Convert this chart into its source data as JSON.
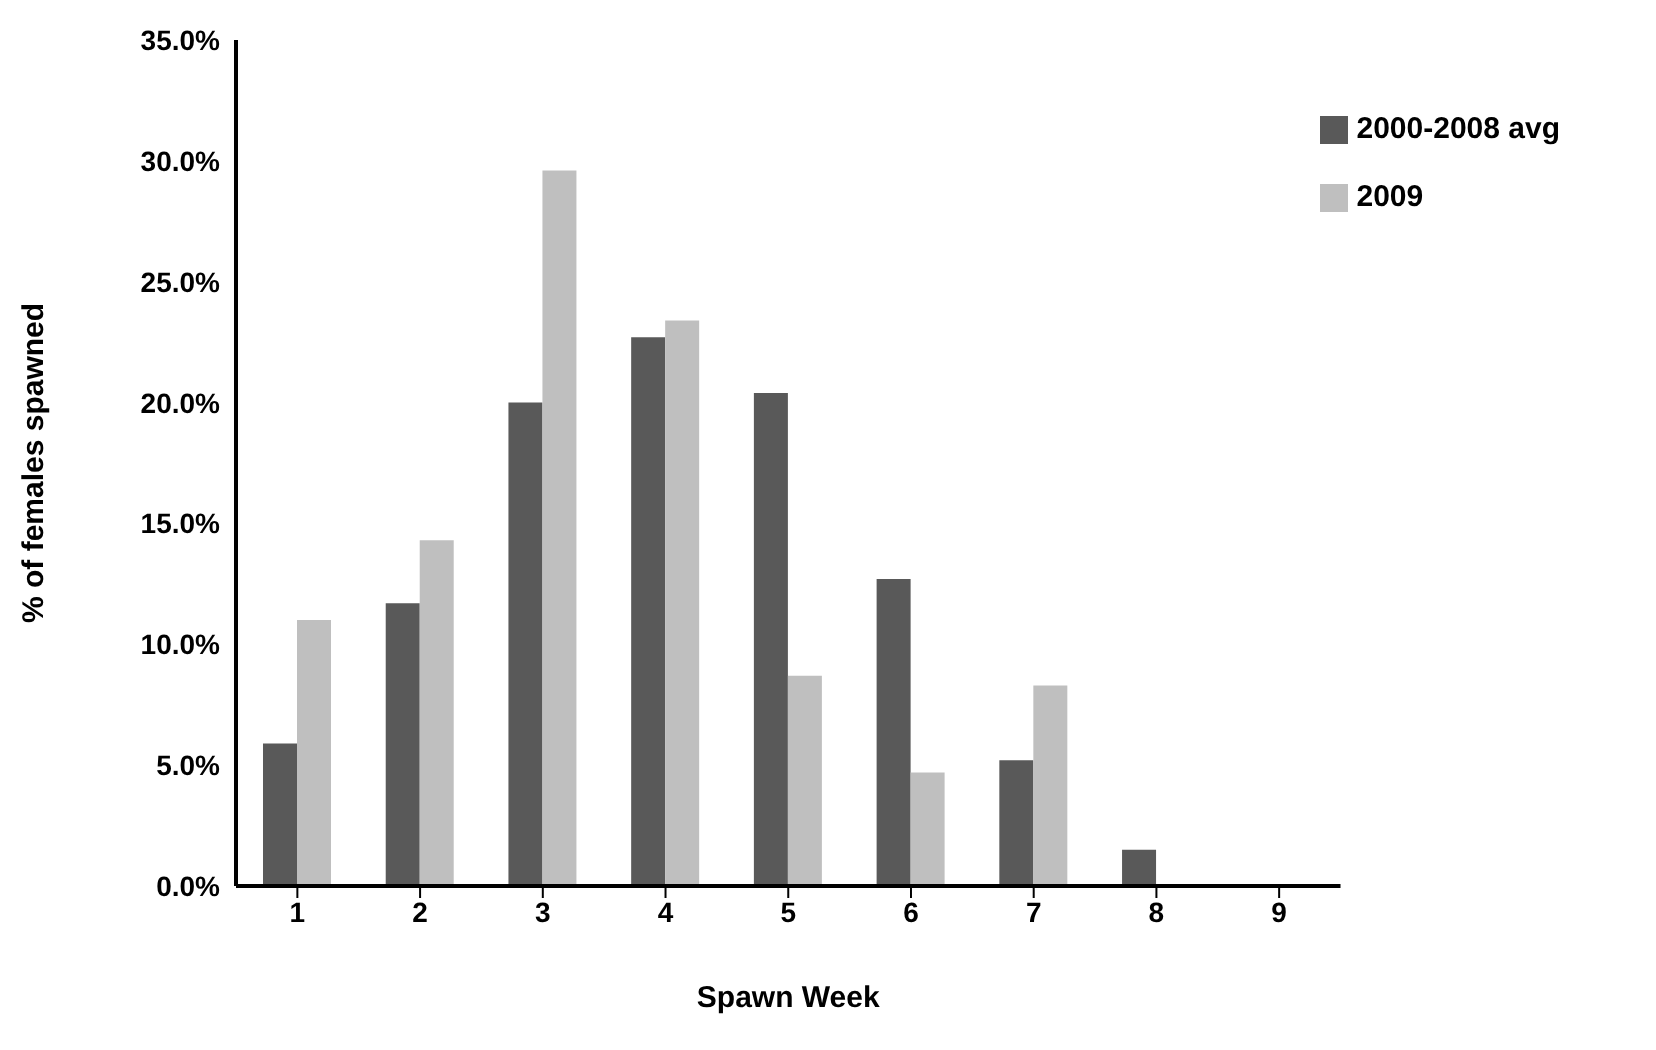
{
  "chart_data": {
    "type": "bar",
    "xlabel": "Spawn Week",
    "ylabel": "% of females spawned",
    "categories": [
      "1",
      "2",
      "3",
      "4",
      "5",
      "6",
      "7",
      "8",
      "9"
    ],
    "series": [
      {
        "name": "2000-2008 avg",
        "color": "#595959",
        "values": [
          5.9,
          11.7,
          20.0,
          22.7,
          20.4,
          12.7,
          5.2,
          1.5,
          0
        ]
      },
      {
        "name": "2009",
        "color": "#bfbfbf",
        "values": [
          11.0,
          14.3,
          29.6,
          23.4,
          8.7,
          4.7,
          8.3,
          0,
          null
        ]
      }
    ],
    "ylim": [
      0,
      35
    ],
    "yticks": [
      {
        "value": 0,
        "label": "0.0%"
      },
      {
        "value": 5,
        "label": "5.0%"
      },
      {
        "value": 10,
        "label": "10.0%"
      },
      {
        "value": 15,
        "label": "15.0%"
      },
      {
        "value": 20,
        "label": "20.0%"
      },
      {
        "value": 25,
        "label": "25.0%"
      },
      {
        "value": 30,
        "label": "30.0%"
      },
      {
        "value": 35,
        "label": "35.0%"
      }
    ],
    "grid": false,
    "legend": "top right"
  }
}
